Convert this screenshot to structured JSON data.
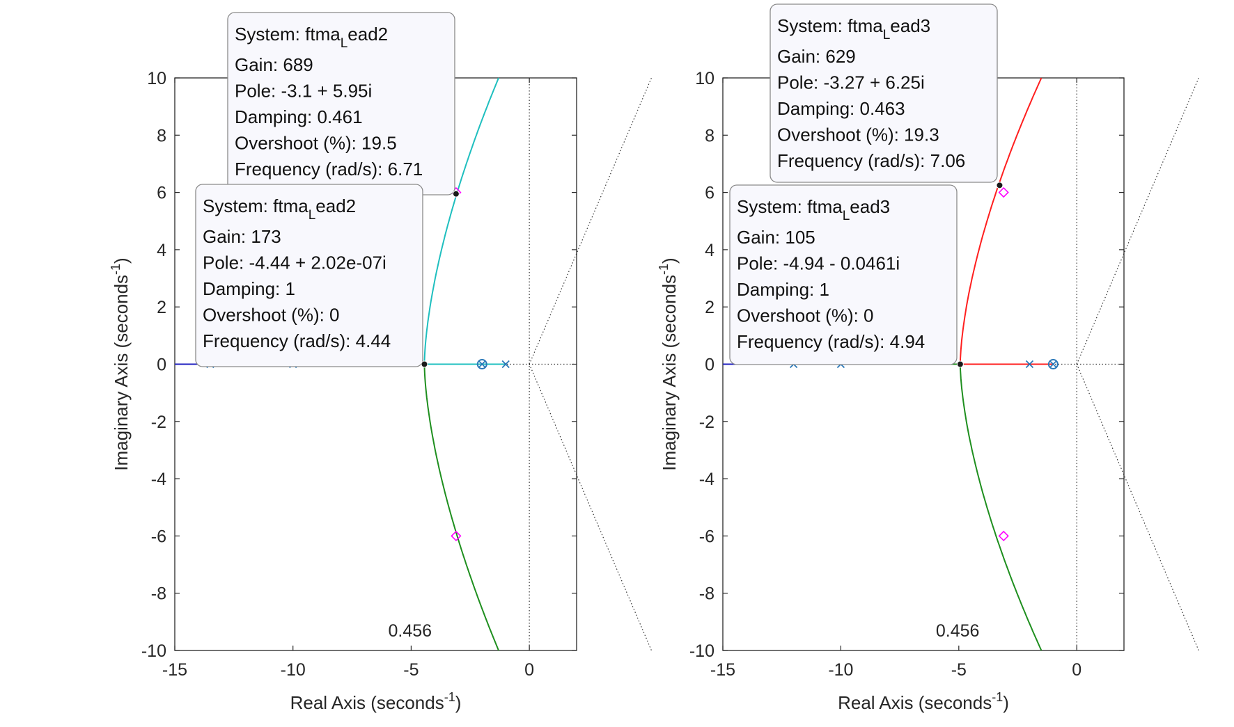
{
  "chart_data": [
    {
      "type": "root_locus",
      "id": "left",
      "xlabel": "Real Axis (seconds",
      "xlabel_sup": "-1",
      "xlabel_end": ")",
      "ylabel": "Imaginary Axis (seconds",
      "ylabel_sup": "-1",
      "ylabel_end": ")",
      "xlim": [
        -15,
        2
      ],
      "ylim": [
        -10,
        10
      ],
      "xticks": [
        -15,
        -10,
        -5,
        0
      ],
      "yticks": [
        -10,
        -8,
        -6,
        -4,
        -2,
        0,
        2,
        4,
        6,
        8,
        10
      ],
      "damping_line_label": "0.456",
      "design_points": [
        [
          -3.1,
          6.0
        ],
        [
          -3.1,
          -6.0
        ]
      ],
      "poles": [
        -13.5,
        -10,
        -1
      ],
      "zeros": [
        -2
      ],
      "colors": {
        "upper_branch": "#1fbfbf",
        "lower_branch": "#1f8f1f",
        "left_branch": "#1f1fbf",
        "marker": "#2a78b8",
        "design": "#ff00ff"
      },
      "branch_breakaway": -4.44,
      "branch_upper_end": [
        -1.3,
        10
      ],
      "branch_lower_end": [
        -1.3,
        -10
      ],
      "datatips": [
        {
          "point": [
            -3.1,
            5.95
          ],
          "system_prefix": "System: ftma",
          "system_sub": "L",
          "system_suffix": "ead2",
          "lines": [
            "Gain: 689",
            "Pole: -3.1 + 5.95i",
            "Damping: 0.461",
            "Overshoot (%): 19.5",
            "Frequency (rad/s): 6.71"
          ]
        },
        {
          "point": [
            -4.44,
            0
          ],
          "system_prefix": "System: ftma",
          "system_sub": "L",
          "system_suffix": "ead2",
          "lines": [
            "Gain: 173",
            "Pole: -4.44 + 2.02e-07i",
            "Damping: 1",
            "Overshoot (%): 0",
            "Frequency (rad/s): 4.44"
          ]
        }
      ]
    },
    {
      "type": "root_locus",
      "id": "right",
      "xlabel": "Real Axis (seconds",
      "xlabel_sup": "-1",
      "xlabel_end": ")",
      "ylabel": "Imaginary Axis (seconds",
      "ylabel_sup": "-1",
      "ylabel_end": ")",
      "xlim": [
        -15,
        2
      ],
      "ylim": [
        -10,
        10
      ],
      "xticks": [
        -15,
        -10,
        -5,
        0
      ],
      "yticks": [
        -10,
        -8,
        -6,
        -4,
        -2,
        0,
        2,
        4,
        6,
        8,
        10
      ],
      "damping_line_label": "0.456",
      "design_points": [
        [
          -3.1,
          6.0
        ],
        [
          -3.1,
          -6.0
        ]
      ],
      "poles": [
        -12,
        -10,
        -2
      ],
      "zeros": [
        -1
      ],
      "colors": {
        "upper_branch": "#ff1f1f",
        "lower_branch": "#1f8f1f",
        "left_branch": "#1f1fbf",
        "marker": "#2a78b8",
        "design": "#ff00ff"
      },
      "branch_breakaway": -4.94,
      "branch_upper_end": [
        -1.5,
        10
      ],
      "branch_lower_end": [
        -1.5,
        -10
      ],
      "datatips": [
        {
          "point": [
            -3.27,
            6.25
          ],
          "system_prefix": "System: ftma",
          "system_sub": "L",
          "system_suffix": "ead3",
          "lines": [
            "Gain: 629",
            "Pole: -3.27 + 6.25i",
            "Damping: 0.463",
            "Overshoot (%): 19.3",
            "Frequency (rad/s): 7.06"
          ]
        },
        {
          "point": [
            -4.94,
            0
          ],
          "system_prefix": "System: ftma",
          "system_sub": "L",
          "system_suffix": "ead3",
          "lines": [
            "Gain: 105",
            "Pole: -4.94 - 0.0461i",
            "Damping: 1",
            "Overshoot (%): 0",
            "Frequency (rad/s): 4.94"
          ]
        }
      ]
    }
  ]
}
